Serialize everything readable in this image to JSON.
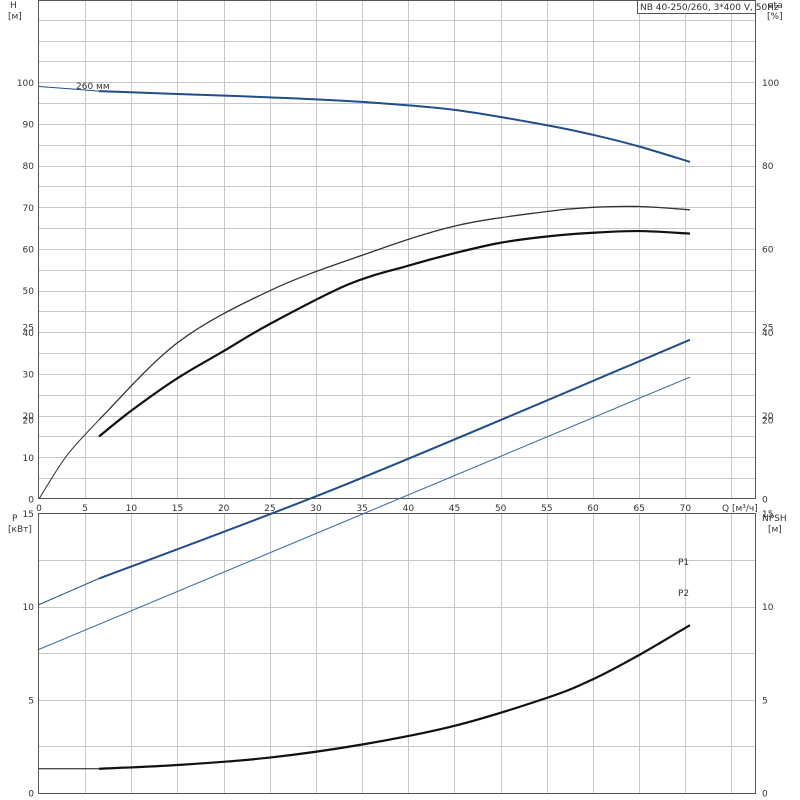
{
  "chart_data": [
    {
      "type": "line",
      "title": "NB 40-250/260, 3*400 V, 50Hz",
      "xlabel": "Q [м³/ч]",
      "ylabel_left": "H\n[м]",
      "ylabel_right": "eta\n[%]",
      "xlim": [
        0,
        75
      ],
      "ylim_left": [
        0,
        120
      ],
      "ylim_right": [
        0,
        120
      ],
      "x_ticks": [
        0,
        5,
        10,
        15,
        20,
        25,
        30,
        35,
        40,
        45,
        50,
        55,
        60,
        65,
        70
      ],
      "y_ticks_left": [
        0,
        10,
        20,
        30,
        40,
        50,
        60,
        70,
        80,
        90,
        100
      ],
      "y_ticks_right": [
        0,
        20,
        40,
        60,
        80,
        100
      ],
      "grid": true,
      "annotations": [
        {
          "text": "260 мм"
        }
      ],
      "series": [
        {
          "axis": "left",
          "color": "#1f4e8a",
          "width": 1,
          "x": [
            0,
            6.5
          ],
          "y": [
            99,
            97.9
          ]
        },
        {
          "axis": "left",
          "color": "#1f4e8a",
          "width": 2,
          "x": [
            6.5,
            15,
            25,
            35,
            45,
            55,
            60,
            65,
            70.5
          ],
          "y": [
            97.9,
            97.2,
            96.4,
            95.3,
            93.4,
            89.7,
            87.4,
            84.6,
            80.9
          ]
        },
        {
          "axis": "right",
          "color": "#333333",
          "width": 1,
          "x": [
            0,
            3,
            6.5
          ],
          "y": [
            0,
            10.4,
            19
          ]
        },
        {
          "axis": "right",
          "color": "#333333",
          "width": 1.3,
          "x": [
            6.5,
            15,
            25,
            35,
            45,
            55,
            60,
            65,
            70.5
          ],
          "y": [
            19,
            37.5,
            50,
            58.5,
            65.5,
            69,
            70,
            70.2,
            69.4
          ]
        },
        {
          "axis": "right",
          "color": "#111111",
          "width": 2.2,
          "x": [
            6.5,
            10,
            15,
            20,
            25,
            33.5,
            40,
            45,
            50,
            55,
            60,
            65,
            70.5
          ],
          "y": [
            15,
            21.2,
            29,
            35.5,
            42,
            51.5,
            56,
            59,
            61.5,
            63,
            63.9,
            64.3,
            63.7
          ]
        }
      ]
    },
    {
      "type": "line",
      "title": "",
      "ylabel_left": "P\n[кВт]",
      "ylabel_right": "NPSH\n[м]",
      "xlim": [
        0,
        75
      ],
      "ylim_left": [
        0,
        28
      ],
      "ylim_right": [
        0,
        28
      ],
      "x_ticks": [
        0,
        5,
        10,
        15,
        20,
        25,
        30,
        35,
        40,
        45,
        50,
        55,
        60,
        65,
        70
      ],
      "y_ticks_left": [
        0,
        5,
        10,
        15,
        20,
        25
      ],
      "y_ticks_right": [
        0,
        5,
        10,
        15,
        20,
        25
      ],
      "grid": true,
      "series": [
        {
          "name": "P1",
          "axis": "left",
          "color": "#1f4e8a",
          "width": 1,
          "x": [
            0,
            6.5
          ],
          "y": [
            10.1,
            11.5
          ]
        },
        {
          "name": "P1",
          "axis": "left",
          "color": "#1f4e8a",
          "width": 2,
          "x": [
            6.5,
            33.5,
            70.5
          ],
          "y": [
            11.5,
            16.6,
            24.3
          ]
        },
        {
          "name": "P2",
          "axis": "left",
          "color": "#3a6aa8",
          "width": 1,
          "x": [
            0,
            70.5
          ],
          "y": [
            7.7,
            22.3
          ]
        },
        {
          "axis": "right",
          "color": "#111111",
          "width": 1,
          "x": [
            0,
            6.5
          ],
          "y": [
            1.3,
            1.3
          ]
        },
        {
          "axis": "right",
          "color": "#111111",
          "width": 2.2,
          "x": [
            6.5,
            15,
            25,
            35,
            45,
            55,
            60,
            65,
            70.5
          ],
          "y": [
            1.3,
            1.5,
            1.9,
            2.6,
            3.6,
            5.1,
            6.1,
            7.4,
            9.0
          ]
        }
      ]
    }
  ]
}
